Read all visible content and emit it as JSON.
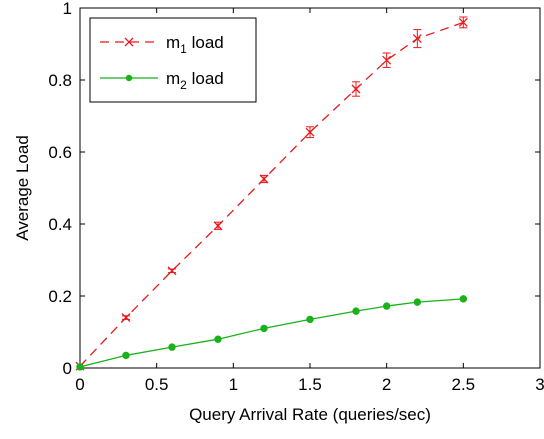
{
  "chart_data": {
    "type": "line",
    "xlabel": "Query Arrival Rate (queries/sec)",
    "ylabel": "Average Load",
    "xlim": [
      0,
      3
    ],
    "ylim": [
      0,
      1
    ],
    "xticks": [
      0,
      0.5,
      1,
      1.5,
      2,
      2.5,
      3
    ],
    "yticks": [
      0,
      0.2,
      0.4,
      0.6,
      0.8,
      1
    ],
    "xtick_labels": [
      "0",
      "0.5",
      "1",
      "1.5",
      "2",
      "2.5",
      "3"
    ],
    "ytick_labels": [
      "0",
      "0.2",
      "0.4",
      "0.6",
      "0.8",
      "1"
    ],
    "grid": false,
    "legend_position": "top-left",
    "series": [
      {
        "name_main": "m",
        "name_sub": "1",
        "name_suffix": " load",
        "color": "#e8191c",
        "line_style": "dashed",
        "marker": "x",
        "x": [
          0,
          0.3,
          0.6,
          0.9,
          1.2,
          1.5,
          1.8,
          2.0,
          2.2,
          2.5
        ],
        "y": [
          0.005,
          0.14,
          0.27,
          0.395,
          0.525,
          0.655,
          0.775,
          0.855,
          0.915,
          0.96
        ],
        "err": [
          0,
          0.005,
          0.005,
          0.01,
          0.01,
          0.015,
          0.02,
          0.02,
          0.025,
          0.015
        ]
      },
      {
        "name_main": "m",
        "name_sub": "2",
        "name_suffix": " load",
        "color": "#19b219",
        "line_style": "solid",
        "marker": "dot",
        "x": [
          0,
          0.3,
          0.6,
          0.9,
          1.2,
          1.5,
          1.8,
          2.0,
          2.2,
          2.5
        ],
        "y": [
          0.003,
          0.035,
          0.058,
          0.08,
          0.11,
          0.135,
          0.158,
          0.172,
          0.183,
          0.192
        ],
        "err": [
          0,
          0,
          0,
          0,
          0,
          0,
          0,
          0,
          0,
          0
        ]
      }
    ]
  }
}
